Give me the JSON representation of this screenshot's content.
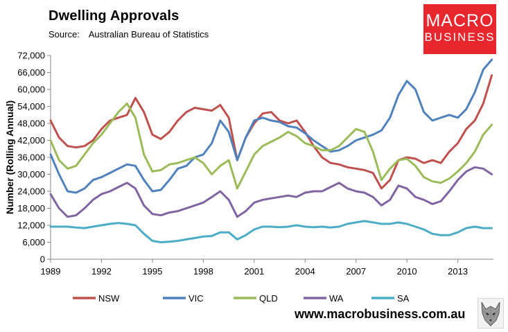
{
  "header": {
    "title": "Dwelling Approvals",
    "source_label": "Source:",
    "source_value": "Australian Bureau of Statistics"
  },
  "logo": {
    "line1": "MACRO",
    "line2": "BUSINESS",
    "color": "#e8262d"
  },
  "footer": {
    "url": "www.macrobusiness.com.au",
    "wolf_icon": "wolf-icon"
  },
  "chart_data": {
    "type": "line",
    "title": "Dwelling Approvals",
    "xlabel": "",
    "ylabel": "Number (Rolling Annual)",
    "xlim": [
      1989,
      2015.1
    ],
    "ylim": [
      0,
      72000
    ],
    "yticks": [
      0,
      6000,
      12000,
      18000,
      24000,
      30000,
      36000,
      42000,
      48000,
      54000,
      60000,
      66000,
      72000
    ],
    "ytick_labels": [
      "0",
      "6,000",
      "12,000",
      "18,000",
      "24,000",
      "30,000",
      "36,000",
      "42,000",
      "48,000",
      "54,000",
      "60,000",
      "66,000",
      "72,000"
    ],
    "xticks": [
      1989,
      1992,
      1995,
      1998,
      2001,
      2004,
      2007,
      2010,
      2013
    ],
    "xtick_labels": [
      "1989",
      "1992",
      "1995",
      "1998",
      "2001",
      "2004",
      "2007",
      "2010",
      "2013"
    ],
    "grid": false,
    "legend_position": "bottom",
    "series": [
      {
        "name": "NSW",
        "color": "#c0504d",
        "x": [
          1989,
          1989.5,
          1990,
          1990.5,
          1991,
          1991.5,
          1992,
          1992.5,
          1993,
          1993.5,
          1994,
          1994.5,
          1995,
          1995.5,
          1996,
          1996.5,
          1997,
          1997.5,
          1998,
          1998.5,
          1999,
          1999.5,
          2000,
          2000.5,
          2001,
          2001.5,
          2002,
          2002.5,
          2003,
          2003.5,
          2004,
          2004.5,
          2005,
          2005.5,
          2006,
          2006.5,
          2007,
          2007.5,
          2008,
          2008.5,
          2009,
          2009.5,
          2010,
          2010.5,
          2011,
          2011.5,
          2012,
          2012.5,
          2013,
          2013.5,
          2014,
          2014.5,
          2015
        ],
        "y": [
          49000,
          43000,
          40000,
          39500,
          40000,
          42000,
          46000,
          49000,
          50000,
          51000,
          57000,
          52000,
          44000,
          42500,
          45000,
          49000,
          52000,
          53500,
          53000,
          52500,
          54500,
          50000,
          35000,
          43000,
          48000,
          51500,
          52000,
          49000,
          48000,
          49000,
          45000,
          40000,
          36000,
          34000,
          33500,
          32500,
          32000,
          31500,
          30500,
          25000,
          28000,
          35000,
          36000,
          35500,
          34000,
          35000,
          34000,
          38000,
          41000,
          46000,
          49000,
          55000,
          65000
        ]
      },
      {
        "name": "VIC",
        "color": "#4f81bd",
        "x": [
          1989,
          1989.5,
          1990,
          1990.5,
          1991,
          1991.5,
          1992,
          1992.5,
          1993,
          1993.5,
          1994,
          1994.5,
          1995,
          1995.5,
          1996,
          1996.5,
          1997,
          1997.5,
          1998,
          1998.5,
          1999,
          1999.5,
          2000,
          2000.5,
          2001,
          2001.5,
          2002,
          2002.5,
          2003,
          2003.5,
          2004,
          2004.5,
          2005,
          2005.5,
          2006,
          2006.5,
          2007,
          2007.5,
          2008,
          2008.5,
          2009,
          2009.5,
          2010,
          2010.5,
          2011,
          2011.5,
          2012,
          2012.5,
          2013,
          2013.5,
          2014,
          2014.5,
          2015
        ],
        "y": [
          37000,
          30000,
          24000,
          23500,
          25000,
          28000,
          29000,
          30500,
          32000,
          33500,
          33000,
          28000,
          24000,
          24500,
          28000,
          32000,
          33000,
          36000,
          37000,
          41000,
          49000,
          45000,
          35000,
          43000,
          49000,
          50000,
          49000,
          48500,
          47000,
          46500,
          44500,
          42000,
          40000,
          38000,
          38500,
          40000,
          42000,
          43000,
          44000,
          45500,
          50000,
          58000,
          63000,
          60000,
          52000,
          49000,
          50000,
          51000,
          50000,
          53000,
          59000,
          67000,
          70500
        ]
      },
      {
        "name": "QLD",
        "color": "#9bbb59",
        "x": [
          1989,
          1989.5,
          1990,
          1990.5,
          1991,
          1991.5,
          1992,
          1992.5,
          1993,
          1993.5,
          1994,
          1994.5,
          1995,
          1995.5,
          1996,
          1996.5,
          1997,
          1997.5,
          1998,
          1998.5,
          1999,
          1999.5,
          2000,
          2000.5,
          2001,
          2001.5,
          2002,
          2002.5,
          2003,
          2003.5,
          2004,
          2004.5,
          2005,
          2005.5,
          2006,
          2006.5,
          2007,
          2007.5,
          2008,
          2008.5,
          2009,
          2009.5,
          2010,
          2010.5,
          2011,
          2011.5,
          2012,
          2012.5,
          2013,
          2013.5,
          2014,
          2014.5,
          2015
        ],
        "y": [
          42000,
          35000,
          32000,
          33000,
          37000,
          41000,
          44000,
          48000,
          52000,
          55000,
          50000,
          37000,
          31000,
          31500,
          33500,
          34000,
          35000,
          36000,
          34000,
          30000,
          33000,
          35000,
          25000,
          31000,
          37000,
          40000,
          41500,
          43000,
          45000,
          43500,
          41000,
          40000,
          38500,
          38500,
          40000,
          43000,
          46000,
          45000,
          38000,
          28000,
          32000,
          35000,
          35500,
          33000,
          29000,
          27500,
          27000,
          28500,
          31000,
          34000,
          38000,
          44000,
          47500
        ]
      },
      {
        "name": "WA",
        "color": "#8064a2",
        "x": [
          1989,
          1989.5,
          1990,
          1990.5,
          1991,
          1991.5,
          1992,
          1992.5,
          1993,
          1993.5,
          1994,
          1994.5,
          1995,
          1995.5,
          1996,
          1996.5,
          1997,
          1997.5,
          1998,
          1998.5,
          1999,
          1999.5,
          2000,
          2000.5,
          2001,
          2001.5,
          2002,
          2002.5,
          2003,
          2003.5,
          2004,
          2004.5,
          2005,
          2005.5,
          2006,
          2006.5,
          2007,
          2007.5,
          2008,
          2008.5,
          2009,
          2009.5,
          2010,
          2010.5,
          2011,
          2011.5,
          2012,
          2012.5,
          2013,
          2013.5,
          2014,
          2014.5,
          2015
        ],
        "y": [
          23000,
          18000,
          15000,
          15500,
          18000,
          21000,
          23000,
          24000,
          25500,
          27000,
          25000,
          19000,
          16000,
          15500,
          16500,
          17000,
          18000,
          19000,
          20000,
          22000,
          24000,
          21000,
          15000,
          17000,
          20000,
          21000,
          21500,
          22000,
          22500,
          22000,
          23500,
          24000,
          24000,
          25500,
          27000,
          25000,
          24000,
          23500,
          22000,
          19000,
          21000,
          26000,
          25000,
          22000,
          21000,
          19500,
          20500,
          24000,
          28000,
          31000,
          32500,
          32000,
          30000
        ]
      },
      {
        "name": "SA",
        "color": "#4bacc6",
        "x": [
          1989,
          1989.5,
          1990,
          1990.5,
          1991,
          1991.5,
          1992,
          1992.5,
          1993,
          1993.5,
          1994,
          1994.5,
          1995,
          1995.5,
          1996,
          1996.5,
          1997,
          1997.5,
          1998,
          1998.5,
          1999,
          1999.5,
          2000,
          2000.5,
          2001,
          2001.5,
          2002,
          2002.5,
          2003,
          2003.5,
          2004,
          2004.5,
          2005,
          2005.5,
          2006,
          2006.5,
          2007,
          2007.5,
          2008,
          2008.5,
          2009,
          2009.5,
          2010,
          2010.5,
          2011,
          2011.5,
          2012,
          2012.5,
          2013,
          2013.5,
          2014,
          2014.5,
          2015
        ],
        "y": [
          11500,
          11500,
          11500,
          11200,
          11000,
          11500,
          12000,
          12500,
          12800,
          12500,
          12000,
          9000,
          6500,
          6000,
          6200,
          6500,
          7000,
          7500,
          8000,
          8200,
          9500,
          9500,
          7000,
          8500,
          10500,
          11500,
          11500,
          11300,
          11500,
          12000,
          11500,
          11300,
          11500,
          11200,
          11500,
          12500,
          13000,
          13500,
          13000,
          12500,
          12500,
          13000,
          12500,
          11500,
          10500,
          9000,
          8500,
          8500,
          9500,
          11000,
          11500,
          11000,
          11000
        ]
      }
    ]
  }
}
